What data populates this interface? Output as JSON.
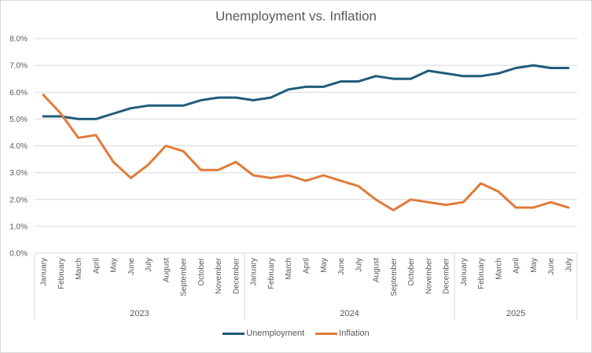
{
  "chart_data": {
    "type": "line",
    "title": "Unemployment vs. Inflation",
    "xlabel": "",
    "ylabel": "",
    "ylim": [
      0,
      8
    ],
    "yticks": [
      "0.0%",
      "1.0%",
      "2.0%",
      "3.0%",
      "4.0%",
      "5.0%",
      "6.0%",
      "7.0%",
      "8.0%"
    ],
    "grid": true,
    "legend_position": "bottom",
    "groups": [
      {
        "label": "2023",
        "categories": [
          "January",
          "February",
          "March",
          "April",
          "May",
          "June",
          "July",
          "August",
          "September",
          "October",
          "November",
          "December"
        ]
      },
      {
        "label": "2024",
        "categories": [
          "January",
          "February",
          "March",
          "April",
          "May",
          "June",
          "July",
          "August",
          "September",
          "October",
          "November",
          "December"
        ]
      },
      {
        "label": "2025",
        "categories": [
          "January",
          "February",
          "March",
          "April",
          "May",
          "June",
          "July"
        ]
      }
    ],
    "series": [
      {
        "name": "Unemployment",
        "color": "#1f5c7a",
        "values": [
          5.1,
          5.1,
          5.0,
          5.0,
          5.2,
          5.4,
          5.5,
          5.5,
          5.5,
          5.7,
          5.8,
          5.8,
          5.7,
          5.8,
          6.1,
          6.2,
          6.2,
          6.4,
          6.4,
          6.6,
          6.5,
          6.5,
          6.8,
          6.7,
          6.6,
          6.6,
          6.7,
          6.9,
          7.0,
          6.9,
          6.9
        ]
      },
      {
        "name": "Inflation",
        "color": "#e07b39",
        "values": [
          5.9,
          5.2,
          4.3,
          4.4,
          3.4,
          2.8,
          3.3,
          4.0,
          3.8,
          3.1,
          3.1,
          3.4,
          2.9,
          2.8,
          2.9,
          2.7,
          2.9,
          2.7,
          2.5,
          2.0,
          1.6,
          2.0,
          1.9,
          1.8,
          1.9,
          2.6,
          2.3,
          1.7,
          1.7,
          1.9,
          1.7
        ]
      }
    ]
  }
}
